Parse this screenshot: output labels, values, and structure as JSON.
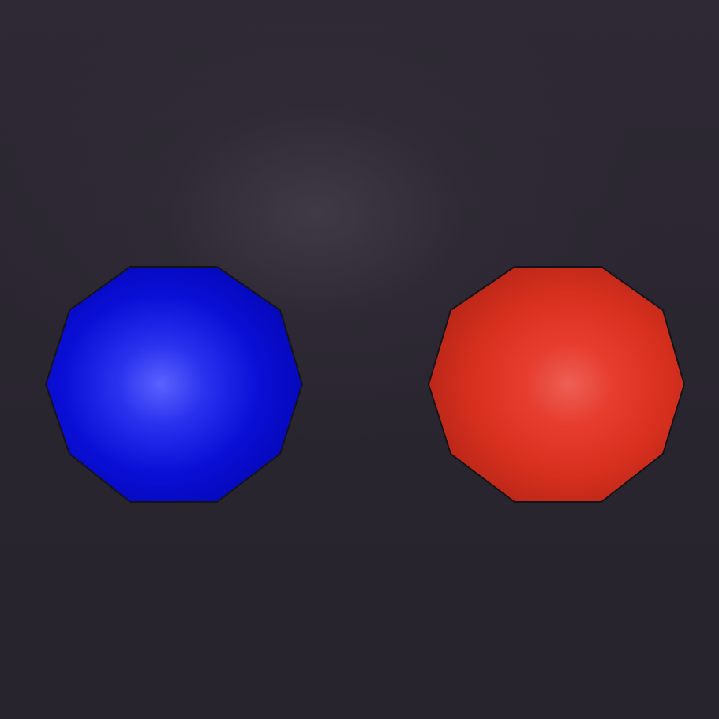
{
  "scene": {
    "background_color": "#2a2530",
    "objects": [
      {
        "name": "blue-sphere",
        "shape": "decagon-sphere",
        "base_color": "#0a0fd6",
        "highlight_color": "#5a62ff",
        "shadow_color": "#0406a0"
      },
      {
        "name": "red-sphere",
        "shape": "decagon-sphere",
        "base_color": "#d8301f",
        "highlight_color": "#ee5f55",
        "shadow_color": "#a82014"
      }
    ]
  }
}
